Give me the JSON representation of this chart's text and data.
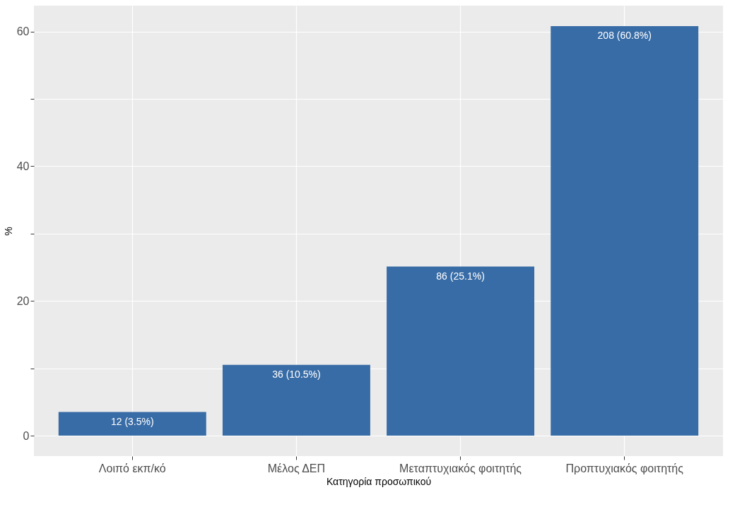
{
  "chart_data": {
    "type": "bar",
    "xlabel": "Κατηγορία προσωπικού",
    "ylabel": "%",
    "categories": [
      "Λοιπό εκπ/κό",
      "Μέλος ΔΕΠ",
      "Μεταπτυχιακός φοιτητής",
      "Προπτυχιακός φοιτητής"
    ],
    "values": [
      3.5,
      10.5,
      25.1,
      60.8
    ],
    "value_labels": [
      "12 (3.5%)",
      "36 (10.5%)",
      "86 (25.1%)",
      "208 (60.8%)"
    ],
    "color": "#386ca6",
    "ylim": [
      -3.04,
      63.84
    ],
    "yticks": [
      0,
      {
        "value": 10,
        "label": null
      },
      20,
      {
        "value": 30,
        "label": null
      },
      40,
      {
        "value": 50,
        "label": null
      },
      60
    ],
    "grid": true
  }
}
